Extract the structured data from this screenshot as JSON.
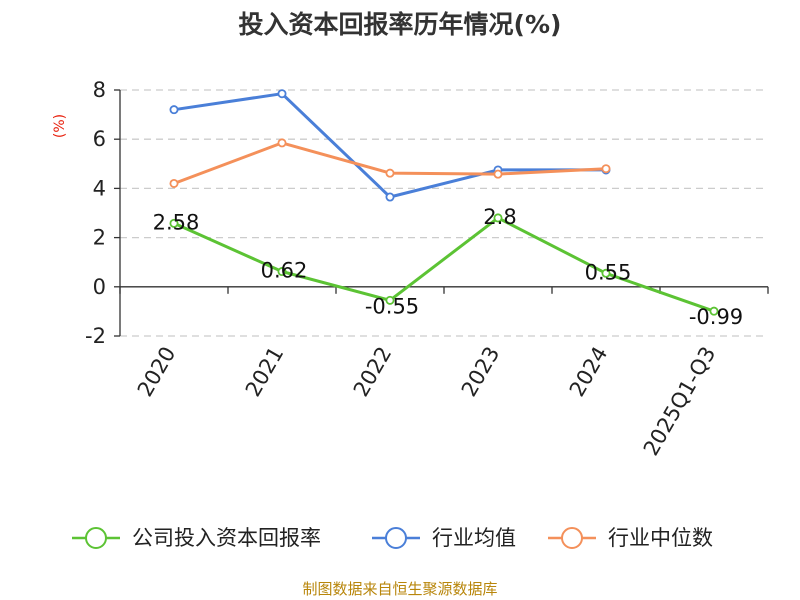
{
  "chart_data": {
    "type": "line",
    "title": "投入资本回报率历年情况(%)",
    "ylabel": "(%)",
    "xlabel": "",
    "categories": [
      "2020",
      "2021",
      "2022",
      "2023",
      "2024",
      "2025Q1-Q3"
    ],
    "ylim": [
      -2,
      8
    ],
    "yticks": [
      8,
      6,
      4,
      2,
      0,
      -2
    ],
    "grid": true,
    "legend_position": "bottom",
    "series": [
      {
        "name": "公司投入资本回报率",
        "color": "#5cc334",
        "values": [
          2.58,
          0.62,
          -0.55,
          2.8,
          0.55,
          -0.99
        ],
        "labels": [
          "2.58",
          "0.62",
          "-0.55",
          "2.8",
          "0.55",
          "-0.99"
        ]
      },
      {
        "name": "行业均值",
        "color": "#4a7fd8",
        "values": [
          7.2,
          7.85,
          3.65,
          4.75,
          4.75,
          null
        ]
      },
      {
        "name": "行业中位数",
        "color": "#f4905a",
        "values": [
          4.2,
          5.85,
          4.62,
          4.58,
          4.8,
          null
        ]
      }
    ]
  },
  "source": "制图数据来自恒生聚源数据库"
}
